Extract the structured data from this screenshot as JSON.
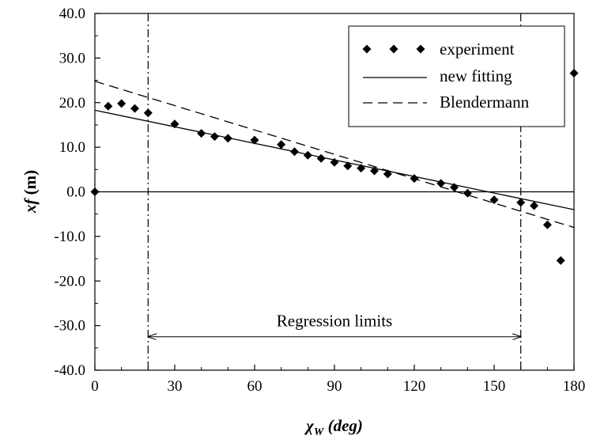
{
  "chart_data": {
    "type": "scatter",
    "title": "",
    "xlabel": {
      "main": "χ",
      "sub": "W",
      "unit": " (deg)"
    },
    "ylabel": {
      "main": "xf",
      "unit": " (m)"
    },
    "xlim": [
      0,
      180
    ],
    "ylim": [
      -40,
      40
    ],
    "xticks": [
      0,
      30,
      60,
      90,
      120,
      150,
      180
    ],
    "yticks": [
      -40,
      -30,
      -20,
      -10,
      0,
      10,
      20,
      30,
      40
    ],
    "xtick_labels": [
      "0",
      "30",
      "60",
      "90",
      "120",
      "150",
      "180"
    ],
    "ytick_labels": [
      "-40.0",
      "-30.0",
      "-20.0",
      "-10.0",
      "0.0",
      "10.0",
      "20.0",
      "30.0",
      "40.0"
    ],
    "grid": false,
    "legend_position": "top-right",
    "series": [
      {
        "name": "experiment",
        "kind": "scatter",
        "marker": "diamond",
        "x": [
          0,
          5,
          10,
          15,
          20,
          30,
          40,
          45,
          50,
          60,
          70,
          75,
          80,
          85,
          90,
          95,
          100,
          105,
          110,
          120,
          130,
          135,
          140,
          150,
          160,
          165,
          170,
          175,
          180
        ],
        "y": [
          0.0,
          19.2,
          19.8,
          18.7,
          17.7,
          15.2,
          13.1,
          12.4,
          12.0,
          11.6,
          10.6,
          9.0,
          8.2,
          7.5,
          6.6,
          5.8,
          5.3,
          4.7,
          4.0,
          3.0,
          1.9,
          1.0,
          -0.3,
          -1.8,
          -2.4,
          -3.1,
          -7.4,
          -15.4,
          26.6
        ]
      },
      {
        "name": "new fitting",
        "kind": "line",
        "dash": "solid",
        "x": [
          0,
          180
        ],
        "y": [
          18.3,
          -4.0
        ]
      },
      {
        "name": "Blendermann",
        "kind": "line",
        "dash": "dashed",
        "x": [
          0,
          180
        ],
        "y": [
          24.8,
          -8.0
        ]
      }
    ],
    "reference_lines": [
      {
        "orientation": "horizontal",
        "value": 0,
        "dash": "solid"
      },
      {
        "orientation": "vertical",
        "value": 20,
        "dash": "dashdot"
      },
      {
        "orientation": "vertical",
        "value": 160,
        "dash": "dashdot"
      }
    ],
    "annotations": [
      {
        "text": "Regression limits",
        "x_from": 20,
        "x_to": 160,
        "y": -32.5
      }
    ]
  }
}
